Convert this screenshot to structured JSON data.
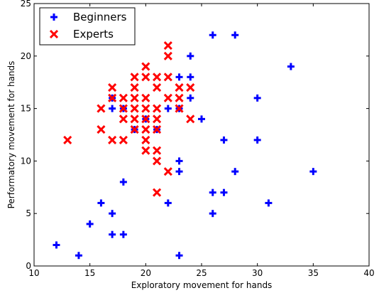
{
  "chart_data": {
    "type": "scatter",
    "title": "",
    "xlabel": "Exploratory movement for hands",
    "ylabel": "Performatory movement for hands",
    "xlim": [
      10,
      40
    ],
    "ylim": [
      0,
      25
    ],
    "xticks": [
      10,
      15,
      20,
      25,
      30,
      35,
      40
    ],
    "yticks": [
      0,
      5,
      10,
      15,
      20,
      25
    ],
    "grid": false,
    "legend": "top-left",
    "series": [
      {
        "name": "Beginners",
        "marker": "plus",
        "color": "#0000ff",
        "points": [
          [
            12,
            2
          ],
          [
            14,
            1
          ],
          [
            15,
            4
          ],
          [
            16,
            6
          ],
          [
            17,
            5
          ],
          [
            17,
            3
          ],
          [
            18,
            3
          ],
          [
            18,
            8
          ],
          [
            17,
            15
          ],
          [
            17,
            16
          ],
          [
            18,
            15
          ],
          [
            19,
            13
          ],
          [
            20,
            14
          ],
          [
            21,
            13
          ],
          [
            22,
            15
          ],
          [
            22,
            6
          ],
          [
            23,
            18
          ],
          [
            23,
            15
          ],
          [
            23,
            10
          ],
          [
            23,
            9
          ],
          [
            23,
            1
          ],
          [
            24,
            20
          ],
          [
            24,
            18
          ],
          [
            24,
            16
          ],
          [
            25,
            14
          ],
          [
            26,
            22
          ],
          [
            26,
            7
          ],
          [
            26,
            5
          ],
          [
            27,
            12
          ],
          [
            27,
            7
          ],
          [
            28,
            22
          ],
          [
            28,
            9
          ],
          [
            30,
            16
          ],
          [
            30,
            12
          ],
          [
            31,
            6
          ],
          [
            33,
            19
          ],
          [
            35,
            9
          ]
        ]
      },
      {
        "name": "Experts",
        "marker": "x",
        "color": "#ff0000",
        "points": [
          [
            13,
            12
          ],
          [
            16,
            15
          ],
          [
            16,
            13
          ],
          [
            17,
            17
          ],
          [
            17,
            16
          ],
          [
            17,
            12
          ],
          [
            18,
            16
          ],
          [
            18,
            15
          ],
          [
            18,
            14
          ],
          [
            18,
            12
          ],
          [
            19,
            18
          ],
          [
            19,
            17
          ],
          [
            19,
            16
          ],
          [
            19,
            15
          ],
          [
            19,
            14
          ],
          [
            19,
            13
          ],
          [
            20,
            19
          ],
          [
            20,
            18
          ],
          [
            20,
            16
          ],
          [
            20,
            15
          ],
          [
            20,
            14
          ],
          [
            20,
            13
          ],
          [
            20,
            12
          ],
          [
            20,
            11
          ],
          [
            21,
            18
          ],
          [
            21,
            17
          ],
          [
            21,
            15
          ],
          [
            21,
            14
          ],
          [
            21,
            13
          ],
          [
            21,
            11
          ],
          [
            21,
            10
          ],
          [
            21,
            7
          ],
          [
            22,
            21
          ],
          [
            22,
            20
          ],
          [
            22,
            18
          ],
          [
            22,
            16
          ],
          [
            22,
            9
          ],
          [
            23,
            17
          ],
          [
            23,
            16
          ],
          [
            23,
            15
          ],
          [
            24,
            17
          ],
          [
            24,
            14
          ]
        ]
      }
    ]
  }
}
